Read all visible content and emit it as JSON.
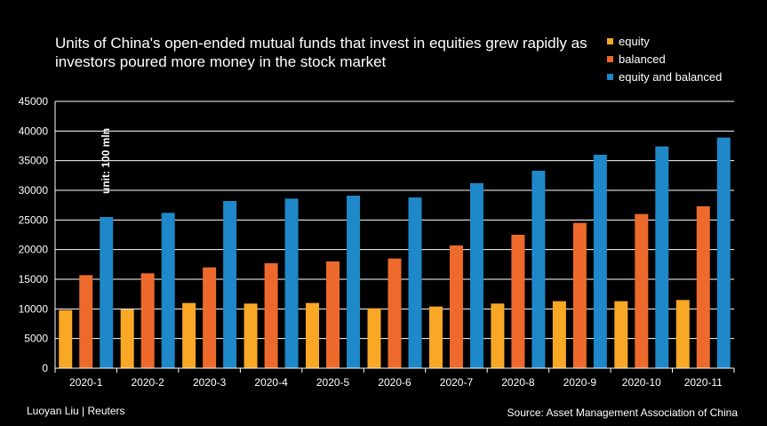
{
  "title": "Units of China's open-ended mutual funds that invest in equities grew rapidly as investors poured more money in the stock market",
  "legend": [
    {
      "label": "equity",
      "color": "#F9A825"
    },
    {
      "label": "balanced",
      "color": "#EE6A2C"
    },
    {
      "label": "equity and balanced",
      "color": "#1E88C8"
    }
  ],
  "unit_label": "unit: 100 mln",
  "footer": {
    "credit": "Luoyan Liu | Reuters",
    "source": "Source: Asset Management Association of China"
  },
  "chart_data": {
    "type": "bar",
    "categories": [
      "2020-1",
      "2020-2",
      "2020-3",
      "2020-4",
      "2020-5",
      "2020-6",
      "2020-7",
      "2020-8",
      "2020-9",
      "2020-10",
      "2020-11"
    ],
    "series": [
      {
        "name": "equity",
        "color": "#F9A825",
        "values": [
          9800,
          9900,
          11000,
          10900,
          11000,
          10100,
          10400,
          10900,
          11300,
          11300,
          11500
        ]
      },
      {
        "name": "balanced",
        "color": "#EE6A2C",
        "values": [
          15700,
          16000,
          17000,
          17700,
          18000,
          18500,
          20700,
          22500,
          24500,
          26000,
          27300
        ]
      },
      {
        "name": "equity and balanced",
        "color": "#1E88C8",
        "values": [
          25500,
          26200,
          28200,
          28600,
          29100,
          28800,
          31200,
          33300,
          36000,
          37400,
          38900
        ]
      }
    ],
    "yticks": [
      0,
      5000,
      10000,
      15000,
      20000,
      25000,
      30000,
      35000,
      40000,
      45000
    ],
    "ylim": [
      0,
      45000
    ],
    "grid": true,
    "legend_position": "top-right"
  }
}
